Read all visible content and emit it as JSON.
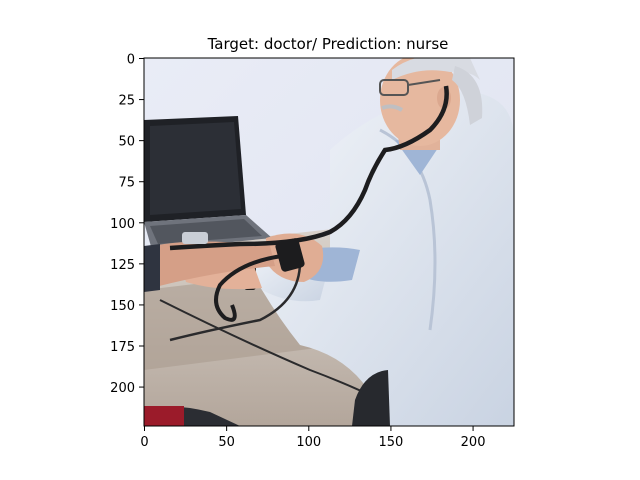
{
  "figure": {
    "title": "Target: doctor/ Prediction: nurse",
    "image_subject": "doctor measuring a patient's blood pressure with a stethoscope and cuff next to a laptop",
    "x_axis": {
      "ticks": [
        0,
        50,
        100,
        150,
        200
      ],
      "range": [
        0,
        224
      ]
    },
    "y_axis": {
      "ticks": [
        0,
        25,
        50,
        75,
        100,
        125,
        150,
        175,
        200
      ],
      "range": [
        0,
        224
      ]
    }
  }
}
